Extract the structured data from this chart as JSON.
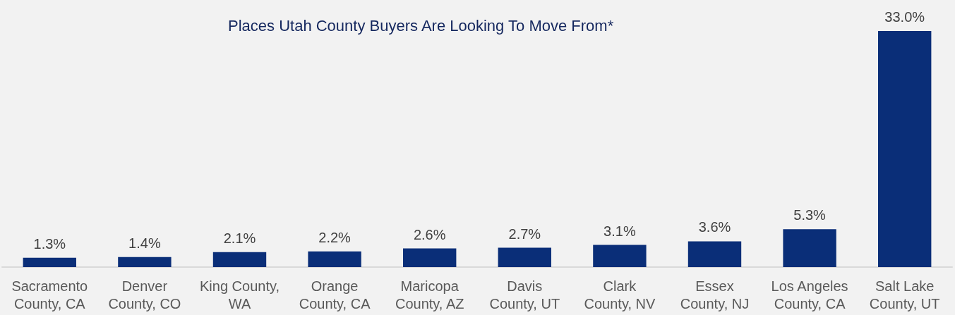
{
  "chart_data": {
    "type": "bar",
    "title": "Places Utah County Buyers Are Looking To Move From*",
    "categories": [
      "Sacramento\nCounty, CA",
      "Denver\nCounty, CO",
      "King County,\nWA",
      "Orange\nCounty, CA",
      "Maricopa\nCounty, AZ",
      "Davis\nCounty, UT",
      "Clark\nCounty, NV",
      "Essex\nCounty, NJ",
      "Los Angeles\nCounty, CA",
      "Salt Lake\nCounty, UT"
    ],
    "values": [
      1.3,
      1.4,
      2.1,
      2.2,
      2.6,
      2.7,
      3.1,
      3.6,
      5.3,
      33.0
    ],
    "value_labels": [
      "1.3%",
      "1.4%",
      "2.1%",
      "2.2%",
      "2.6%",
      "2.7%",
      "3.1%",
      "3.6%",
      "5.3%",
      "33.0%"
    ],
    "color": "#0a2e78"
  }
}
